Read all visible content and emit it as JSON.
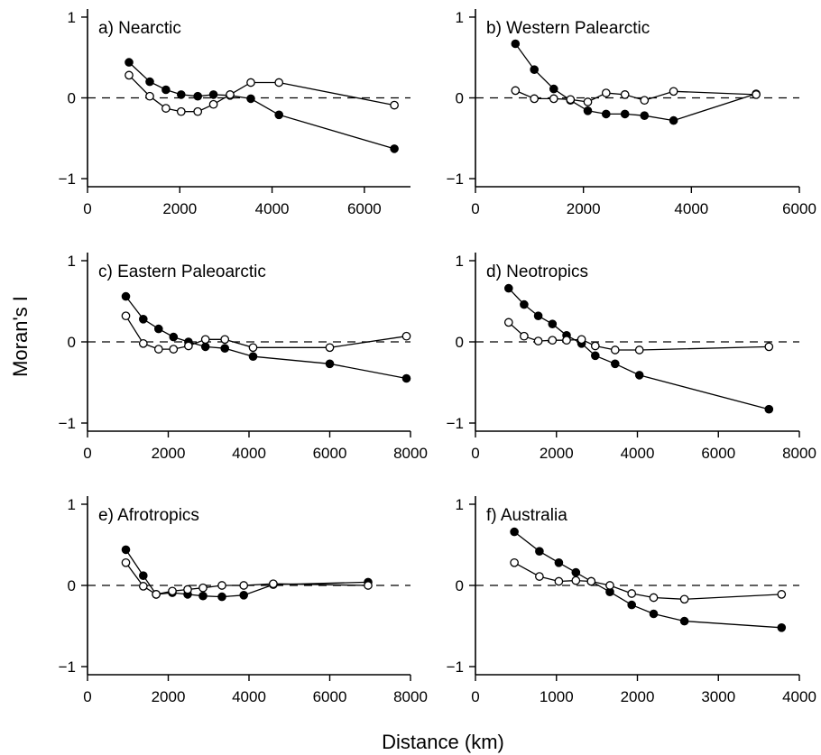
{
  "ylabel": "Moran's I",
  "xlabel": "Distance (km)",
  "chart_data": [
    {
      "type": "line",
      "title": "a) Nearctic",
      "xlim": [
        0,
        7000
      ],
      "ylim": [
        -1.1,
        1.1
      ],
      "xticks": [
        0,
        2000,
        4000,
        6000
      ],
      "yticks": [
        -1,
        0,
        1
      ],
      "xtick_labels": [
        "0",
        "2000",
        "4000",
        "6000"
      ],
      "ytick_labels": [
        "−1",
        "0",
        "1"
      ],
      "reference_line": 0,
      "series": [
        {
          "marker": "filled",
          "x": [
            900,
            1350,
            1700,
            2030,
            2390,
            2730,
            3090,
            3540,
            4150,
            6650
          ],
          "y": [
            0.44,
            0.2,
            0.1,
            0.04,
            0.02,
            0.04,
            0.03,
            -0.01,
            -0.21,
            -0.63
          ]
        },
        {
          "marker": "open",
          "x": [
            900,
            1350,
            1700,
            2030,
            2390,
            2730,
            3090,
            3540,
            4150,
            6650
          ],
          "y": [
            0.28,
            0.02,
            -0.13,
            -0.17,
            -0.17,
            -0.08,
            0.04,
            0.19,
            0.19,
            -0.09
          ]
        }
      ]
    },
    {
      "type": "line",
      "title": "b) Western Palearctic",
      "xlim": [
        0,
        6000
      ],
      "ylim": [
        -1.1,
        1.1
      ],
      "xticks": [
        0,
        2000,
        4000,
        6000
      ],
      "yticks": [
        -1,
        0,
        1
      ],
      "xtick_labels": [
        "0",
        "2000",
        "4000",
        "6000"
      ],
      "ytick_labels": [
        "−1",
        "0",
        "1"
      ],
      "reference_line": 0,
      "series": [
        {
          "marker": "filled",
          "x": [
            740,
            1090,
            1450,
            1760,
            2080,
            2420,
            2770,
            3130,
            3670,
            5200
          ],
          "y": [
            0.67,
            0.35,
            0.11,
            -0.03,
            -0.16,
            -0.2,
            -0.2,
            -0.22,
            -0.28,
            0.05
          ]
        },
        {
          "marker": "open",
          "x": [
            740,
            1090,
            1450,
            1760,
            2080,
            2420,
            2770,
            3130,
            3670,
            5200
          ],
          "y": [
            0.09,
            -0.01,
            -0.01,
            -0.02,
            -0.05,
            0.06,
            0.04,
            -0.03,
            0.08,
            0.04
          ]
        }
      ]
    },
    {
      "type": "line",
      "title": "c) Eastern Paleoarctic",
      "xlim": [
        0,
        8000
      ],
      "ylim": [
        -1.1,
        1.1
      ],
      "xticks": [
        0,
        2000,
        4000,
        6000,
        8000
      ],
      "yticks": [
        -1,
        0,
        1
      ],
      "xtick_labels": [
        "0",
        "2000",
        "4000",
        "6000",
        "8000"
      ],
      "ytick_labels": [
        "−1",
        "0",
        "1"
      ],
      "reference_line": 0,
      "series": [
        {
          "marker": "filled",
          "x": [
            950,
            1380,
            1760,
            2130,
            2500,
            2920,
            3400,
            4100,
            6000,
            7900
          ],
          "y": [
            0.56,
            0.28,
            0.16,
            0.06,
            0.0,
            -0.06,
            -0.08,
            -0.18,
            -0.27,
            -0.45
          ]
        },
        {
          "marker": "open",
          "x": [
            950,
            1380,
            1760,
            2130,
            2500,
            2920,
            3400,
            4100,
            6000,
            7900
          ],
          "y": [
            0.32,
            -0.02,
            -0.09,
            -0.09,
            -0.05,
            0.03,
            0.03,
            -0.07,
            -0.07,
            0.07
          ]
        }
      ]
    },
    {
      "type": "line",
      "title": "d) Neotropics",
      "xlim": [
        0,
        8000
      ],
      "ylim": [
        -1.1,
        1.1
      ],
      "xticks": [
        0,
        2000,
        4000,
        6000,
        8000
      ],
      "yticks": [
        -1,
        0,
        1
      ],
      "xtick_labels": [
        "0",
        "2000",
        "4000",
        "6000",
        "8000"
      ],
      "ytick_labels": [
        "−1",
        "0",
        "1"
      ],
      "reference_line": 0,
      "series": [
        {
          "marker": "filled",
          "x": [
            820,
            1200,
            1550,
            1900,
            2250,
            2620,
            2960,
            3450,
            4050,
            7250
          ],
          "y": [
            0.66,
            0.46,
            0.32,
            0.22,
            0.08,
            -0.02,
            -0.17,
            -0.27,
            -0.41,
            -0.83
          ]
        },
        {
          "marker": "open",
          "x": [
            820,
            1200,
            1550,
            1900,
            2250,
            2620,
            2960,
            3450,
            4050,
            7250
          ],
          "y": [
            0.24,
            0.07,
            0.01,
            0.02,
            0.02,
            0.03,
            -0.05,
            -0.1,
            -0.1,
            -0.06
          ]
        }
      ]
    },
    {
      "type": "line",
      "title": "e) Afrotropics",
      "xlim": [
        0,
        8000
      ],
      "ylim": [
        -1.1,
        1.1
      ],
      "xticks": [
        0,
        2000,
        4000,
        6000,
        8000
      ],
      "yticks": [
        -1,
        0,
        1
      ],
      "xtick_labels": [
        "0",
        "2000",
        "4000",
        "6000",
        "8000"
      ],
      "ytick_labels": [
        "−1",
        "0",
        "1"
      ],
      "reference_line": 0,
      "series": [
        {
          "marker": "filled",
          "x": [
            950,
            1380,
            1700,
            2100,
            2480,
            2860,
            3330,
            3870,
            4600,
            6950
          ],
          "y": [
            0.44,
            0.12,
            -0.11,
            -0.09,
            -0.11,
            -0.13,
            -0.14,
            -0.12,
            0.01,
            0.04
          ]
        },
        {
          "marker": "open",
          "x": [
            950,
            1380,
            1700,
            2100,
            2480,
            2860,
            3330,
            3870,
            4600,
            6950
          ],
          "y": [
            0.28,
            -0.01,
            -0.11,
            -0.07,
            -0.05,
            -0.03,
            0.0,
            0.0,
            0.02,
            0.0
          ]
        }
      ]
    },
    {
      "type": "line",
      "title": "f) Australia",
      "xlim": [
        0,
        4000
      ],
      "ylim": [
        -1.1,
        1.1
      ],
      "xticks": [
        0,
        1000,
        2000,
        3000,
        4000
      ],
      "yticks": [
        -1,
        0,
        1
      ],
      "xtick_labels": [
        "0",
        "1000",
        "2000",
        "3000",
        "4000"
      ],
      "ytick_labels": [
        "−1",
        "0",
        "1"
      ],
      "reference_line": 0,
      "series": [
        {
          "marker": "filled",
          "x": [
            480,
            790,
            1030,
            1240,
            1430,
            1660,
            1930,
            2200,
            2580,
            3780
          ],
          "y": [
            0.66,
            0.42,
            0.28,
            0.16,
            0.05,
            -0.08,
            -0.24,
            -0.35,
            -0.44,
            -0.52
          ]
        },
        {
          "marker": "open",
          "x": [
            480,
            790,
            1030,
            1240,
            1430,
            1660,
            1930,
            2200,
            2580,
            3780
          ],
          "y": [
            0.28,
            0.11,
            0.05,
            0.06,
            0.05,
            0.0,
            -0.1,
            -0.15,
            -0.17,
            -0.11
          ]
        }
      ]
    }
  ]
}
